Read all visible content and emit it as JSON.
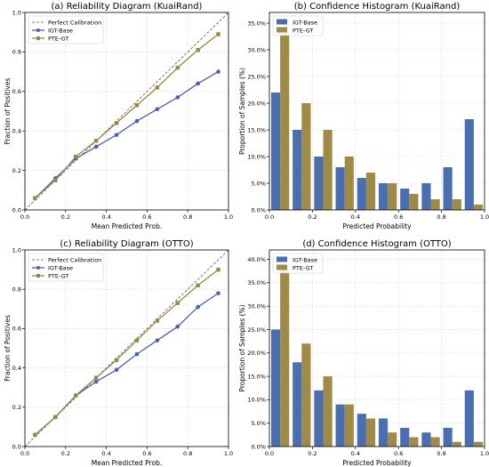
{
  "chart_data": [
    {
      "type": "line",
      "title": "(a) Reliability Diagram (KuaiRand)",
      "xlabel": "Mean Predicted Prob.",
      "ylabel": "Fraction of Positives",
      "xlim": [
        0,
        1
      ],
      "ylim": [
        0,
        1
      ],
      "xticks": [
        "0.0",
        "0.2",
        "0.4",
        "0.6",
        "0.8",
        "1.0"
      ],
      "yticks": [
        "0.0",
        "0.2",
        "0.4",
        "0.6",
        "0.8",
        "1.0"
      ],
      "grid": true,
      "legend_position": "top-left",
      "x": [
        0.05,
        0.15,
        0.25,
        0.35,
        0.45,
        0.55,
        0.65,
        0.75,
        0.85,
        0.95
      ],
      "series": [
        {
          "name": "Perfect Calibration",
          "style": "dashed",
          "color": "#555555",
          "x": [
            0,
            1
          ],
          "values": [
            0,
            1
          ]
        },
        {
          "name": "IGT-Base",
          "color": "#4a5fb4",
          "values": [
            0.06,
            0.16,
            0.26,
            0.32,
            0.38,
            0.45,
            0.51,
            0.57,
            0.64,
            0.7
          ]
        },
        {
          "name": "PTE-GT",
          "color": "#9a8840",
          "values": [
            0.06,
            0.15,
            0.27,
            0.35,
            0.44,
            0.53,
            0.62,
            0.72,
            0.81,
            0.89
          ]
        }
      ]
    },
    {
      "type": "bar",
      "title": "(b) Confidence Histogram (KuaiRand)",
      "xlabel": "Predicted Probability",
      "ylabel": "Proportion of Samples (%)",
      "xlim": [
        0,
        1
      ],
      "ylim": [
        0,
        37
      ],
      "xticks": [
        "0.0",
        "0.2",
        "0.4",
        "0.6",
        "0.8",
        "1.0"
      ],
      "yticks": [
        "0.0%",
        "5.0%",
        "10.0%",
        "15.0%",
        "20.0%",
        "25.0%",
        "30.0%",
        "35.0%"
      ],
      "grid": true,
      "legend_position": "top-left",
      "x": [
        0.05,
        0.15,
        0.25,
        0.35,
        0.45,
        0.55,
        0.65,
        0.75,
        0.85,
        0.95
      ],
      "series": [
        {
          "name": "IGT-Base",
          "color": "#4a6fb0",
          "values": [
            22,
            15,
            10,
            8,
            6,
            5,
            4,
            5,
            8,
            17
          ]
        },
        {
          "name": "PTE-GT",
          "color": "#a08a48",
          "values": [
            33,
            20,
            15,
            10,
            7,
            5,
            3,
            2,
            2,
            1
          ]
        }
      ]
    },
    {
      "type": "line",
      "title": "(c) Reliability Diagram (OTTO)",
      "xlabel": "Mean Predicted Prob.",
      "ylabel": "Fraction of Positives",
      "xlim": [
        0,
        1
      ],
      "ylim": [
        0,
        1
      ],
      "xticks": [
        "0.0",
        "0.2",
        "0.4",
        "0.6",
        "0.8",
        "1.0"
      ],
      "yticks": [
        "0.0",
        "0.2",
        "0.4",
        "0.6",
        "0.8",
        "1.0"
      ],
      "grid": true,
      "legend_position": "top-left",
      "x": [
        0.05,
        0.15,
        0.25,
        0.35,
        0.45,
        0.55,
        0.65,
        0.75,
        0.85,
        0.95
      ],
      "series": [
        {
          "name": "Perfect Calibration",
          "style": "dashed",
          "color": "#555555",
          "x": [
            0,
            1
          ],
          "values": [
            0,
            1
          ]
        },
        {
          "name": "IGT-Base",
          "color": "#4a5fb4",
          "values": [
            0.06,
            0.15,
            0.26,
            0.33,
            0.39,
            0.47,
            0.54,
            0.61,
            0.71,
            0.78
          ]
        },
        {
          "name": "PTE-GT",
          "color": "#9a8840",
          "values": [
            0.06,
            0.15,
            0.26,
            0.35,
            0.44,
            0.54,
            0.64,
            0.73,
            0.82,
            0.9
          ]
        }
      ]
    },
    {
      "type": "bar",
      "title": "(d) Confidence Histogram (OTTO)",
      "xlabel": "Predicted Probability",
      "ylabel": "Proportion of Samples (%)",
      "xlim": [
        0,
        1
      ],
      "ylim": [
        0,
        42
      ],
      "xticks": [
        "0.0",
        "0.2",
        "0.4",
        "0.6",
        "0.8",
        "1.0"
      ],
      "yticks": [
        "0.0%",
        "5.0%",
        "10.0%",
        "15.0%",
        "20.0%",
        "25.0%",
        "30.0%",
        "35.0%",
        "40.0%"
      ],
      "grid": true,
      "legend_position": "top-left",
      "x": [
        0.05,
        0.15,
        0.25,
        0.35,
        0.45,
        0.55,
        0.65,
        0.75,
        0.85,
        0.95
      ],
      "series": [
        {
          "name": "IGT-Base",
          "color": "#4a6fb0",
          "values": [
            25,
            18,
            12,
            9,
            7,
            6,
            4,
            3,
            4,
            12
          ]
        },
        {
          "name": "PTE-GT",
          "color": "#a08a48",
          "values": [
            38,
            22,
            15,
            9,
            6,
            3,
            2,
            2,
            1,
            1
          ]
        }
      ]
    }
  ]
}
